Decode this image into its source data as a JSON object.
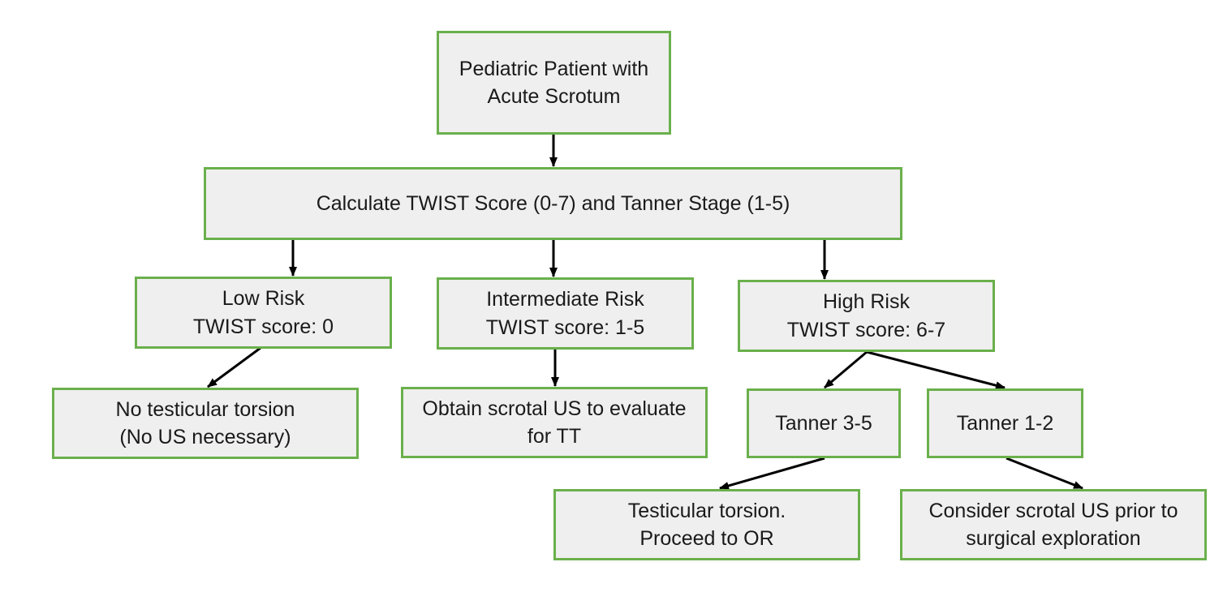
{
  "colors": {
    "box_border": "#6ab04c",
    "box_fill": "#efefef",
    "arrow": "#000000",
    "text": "#1a1a1a"
  },
  "nodes": {
    "start": {
      "lines": [
        "Pediatric Patient with",
        "Acute Scrotum"
      ]
    },
    "calculate": {
      "lines": [
        "Calculate TWIST Score (0-7) and Tanner Stage (1-5)"
      ]
    },
    "low_risk": {
      "lines": [
        "Low Risk",
        "TWIST score: 0"
      ]
    },
    "intermediate_risk": {
      "lines": [
        "Intermediate Risk",
        "TWIST score: 1-5"
      ]
    },
    "high_risk": {
      "lines": [
        "High Risk",
        "TWIST score: 6-7"
      ]
    },
    "no_torsion": {
      "lines": [
        "No testicular torsion",
        "(No US necessary)"
      ]
    },
    "obtain_us": {
      "lines": [
        "Obtain scrotal US to evaluate",
        "for TT"
      ]
    },
    "tanner_3_5": {
      "lines": [
        "Tanner 3-5"
      ]
    },
    "tanner_1_2": {
      "lines": [
        "Tanner 1-2"
      ]
    },
    "proceed_or": {
      "lines": [
        "Testicular torsion.",
        "Proceed to OR"
      ]
    },
    "consider_us": {
      "lines": [
        "Consider scrotal US prior to",
        "surgical exploration"
      ]
    }
  },
  "edges": [
    {
      "from": "start",
      "to": "calculate"
    },
    {
      "from": "calculate",
      "to": "low_risk"
    },
    {
      "from": "calculate",
      "to": "intermediate_risk"
    },
    {
      "from": "calculate",
      "to": "high_risk"
    },
    {
      "from": "low_risk",
      "to": "no_torsion"
    },
    {
      "from": "intermediate_risk",
      "to": "obtain_us"
    },
    {
      "from": "high_risk",
      "to": "tanner_3_5"
    },
    {
      "from": "high_risk",
      "to": "tanner_1_2"
    },
    {
      "from": "tanner_3_5",
      "to": "proceed_or"
    },
    {
      "from": "tanner_1_2",
      "to": "consider_us"
    }
  ]
}
